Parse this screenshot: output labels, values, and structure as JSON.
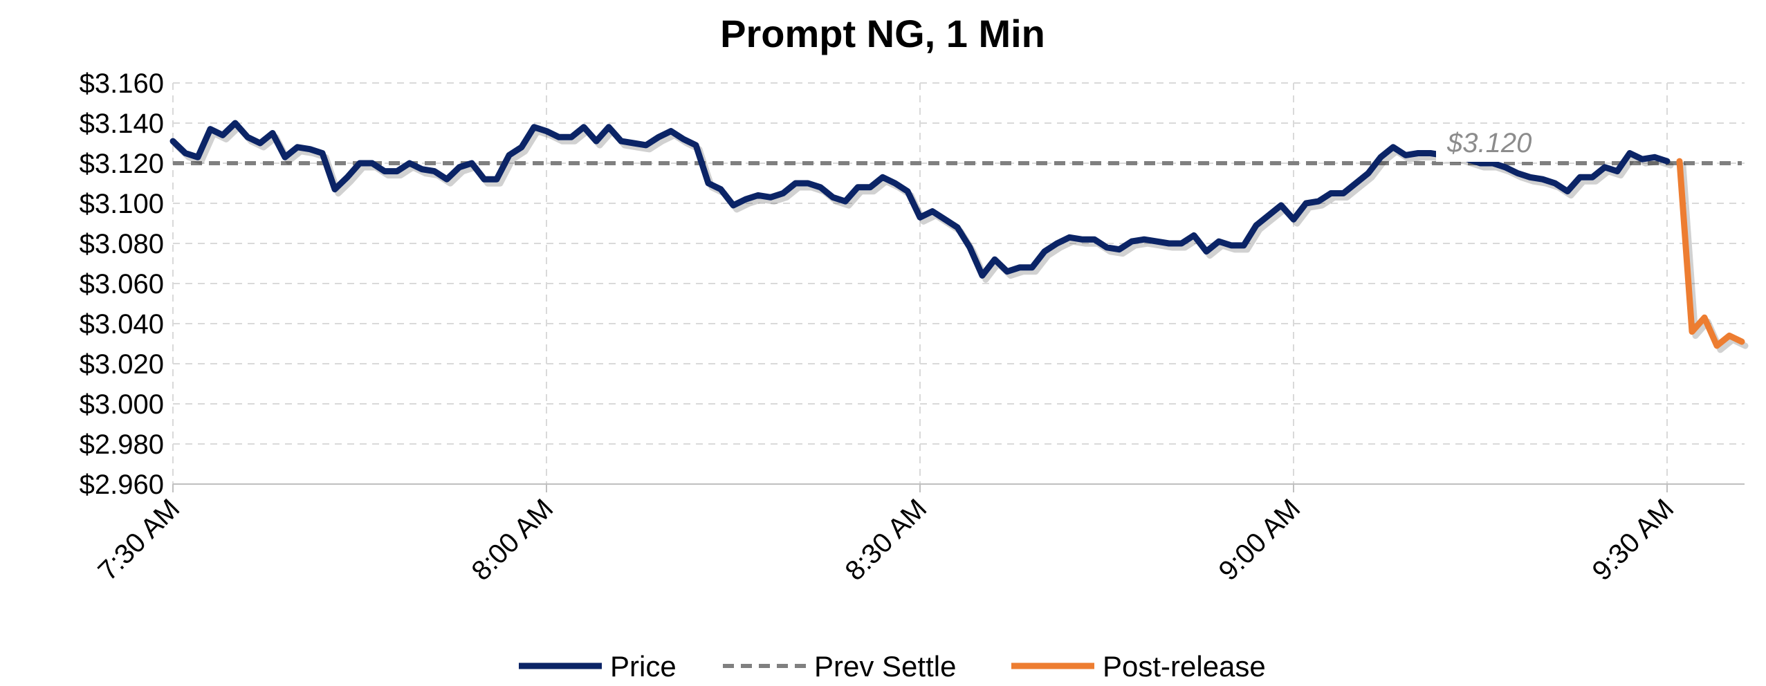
{
  "chart_data": {
    "type": "line",
    "title": "Prompt NG, 1 Min",
    "xlabel": "",
    "ylabel": "",
    "x_tick_labels": [
      "7:30 AM",
      "8:00 AM",
      "8:30 AM",
      "9:00 AM",
      "9:30 AM"
    ],
    "x_range_minutes": [
      0,
      126
    ],
    "y_tick_labels": [
      "$3.160",
      "$3.140",
      "$3.120",
      "$3.100",
      "$3.080",
      "$3.060",
      "$3.040",
      "$3.020",
      "$3.000",
      "$2.980",
      "$2.960"
    ],
    "ylim": [
      2.96,
      3.16
    ],
    "grid": true,
    "legend_position": "bottom",
    "colors": {
      "price": "#0b2466",
      "prev_settle": "#808080",
      "post_release": "#ed7d31"
    },
    "annotation": {
      "text": "$3.120"
    },
    "series": [
      {
        "name": "Price",
        "style": "solid",
        "x": [
          0,
          1,
          2,
          3,
          4,
          5,
          6,
          7,
          8,
          9,
          10,
          11,
          12,
          13,
          14,
          15,
          16,
          17,
          18,
          19,
          20,
          21,
          22,
          23,
          24,
          25,
          26,
          27,
          28,
          29,
          30,
          31,
          32,
          33,
          34,
          35,
          36,
          37,
          38,
          39,
          40,
          41,
          42,
          43,
          44,
          45,
          46,
          47,
          48,
          49,
          50,
          51,
          52,
          53,
          54,
          55,
          56,
          57,
          58,
          59,
          60,
          61,
          62,
          63,
          64,
          65,
          66,
          67,
          68,
          69,
          70,
          71,
          72,
          73,
          74,
          75,
          76,
          77,
          78,
          79,
          80,
          81,
          82,
          83,
          84,
          85,
          86,
          87,
          88,
          89,
          90,
          91,
          92,
          93,
          94,
          95,
          96,
          97,
          98,
          99,
          100,
          101,
          102,
          103,
          104,
          105,
          106,
          107,
          108,
          109,
          110,
          111,
          112,
          113,
          114,
          115,
          116,
          117,
          118,
          119,
          120
        ],
        "values": [
          3.131,
          3.125,
          3.123,
          3.137,
          3.134,
          3.14,
          3.133,
          3.13,
          3.135,
          3.123,
          3.128,
          3.127,
          3.125,
          3.107,
          3.113,
          3.12,
          3.12,
          3.116,
          3.116,
          3.12,
          3.117,
          3.116,
          3.112,
          3.118,
          3.12,
          3.112,
          3.112,
          3.124,
          3.128,
          3.138,
          3.136,
          3.133,
          3.133,
          3.138,
          3.131,
          3.138,
          3.131,
          3.13,
          3.129,
          3.133,
          3.136,
          3.132,
          3.129,
          3.11,
          3.107,
          3.099,
          3.102,
          3.104,
          3.103,
          3.105,
          3.11,
          3.11,
          3.108,
          3.103,
          3.101,
          3.108,
          3.108,
          3.113,
          3.11,
          3.106,
          3.093,
          3.096,
          3.092,
          3.088,
          3.078,
          3.064,
          3.072,
          3.066,
          3.068,
          3.068,
          3.076,
          3.08,
          3.083,
          3.082,
          3.082,
          3.078,
          3.077,
          3.081,
          3.082,
          3.081,
          3.08,
          3.08,
          3.084,
          3.076,
          3.081,
          3.079,
          3.079,
          3.089,
          3.094,
          3.099,
          3.092,
          3.1,
          3.101,
          3.105,
          3.105,
          3.11,
          3.115,
          3.123,
          3.128,
          3.124,
          3.125,
          3.125,
          3.124,
          3.124,
          3.122,
          3.12,
          3.12,
          3.118,
          3.115,
          3.113,
          3.112,
          3.11,
          3.106,
          3.113,
          3.113,
          3.118,
          3.116,
          3.125,
          3.122,
          3.123,
          3.121
        ]
      },
      {
        "name": "Prev Settle",
        "style": "dashed",
        "x": [
          0,
          126
        ],
        "values": [
          3.12,
          3.12
        ]
      },
      {
        "name": "Post-release",
        "style": "solid",
        "x": [
          121,
          122,
          123,
          124,
          125,
          126
        ],
        "values": [
          3.121,
          3.036,
          3.043,
          3.029,
          3.034,
          3.031
        ]
      }
    ]
  }
}
